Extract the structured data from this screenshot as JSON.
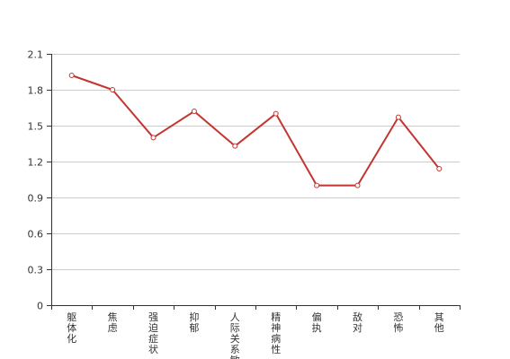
{
  "chart_data": {
    "type": "line",
    "title": "",
    "xlabel": "",
    "ylabel": "",
    "categories": [
      "躯体化",
      "焦虑",
      "强迫症状",
      "抑郁",
      "人际关系敏感",
      "精神病性",
      "偏执",
      "敌对",
      "恐怖",
      "其他"
    ],
    "series": [
      {
        "values": [
          1.92,
          1.8,
          1.4,
          1.62,
          1.33,
          1.6,
          1.0,
          1.0,
          1.57,
          1.14
        ]
      }
    ],
    "ylim": [
      0,
      2.1
    ],
    "yticks": [
      "0",
      "0.3",
      "0.6",
      "0.9",
      "1.2",
      "1.5",
      "1.8",
      "2.1"
    ],
    "grid": true,
    "legend": "none"
  },
  "colors": {
    "line": "#c23531",
    "grid": "#cccccc",
    "axis": "#333333",
    "marker_fill": "#ffffff"
  }
}
